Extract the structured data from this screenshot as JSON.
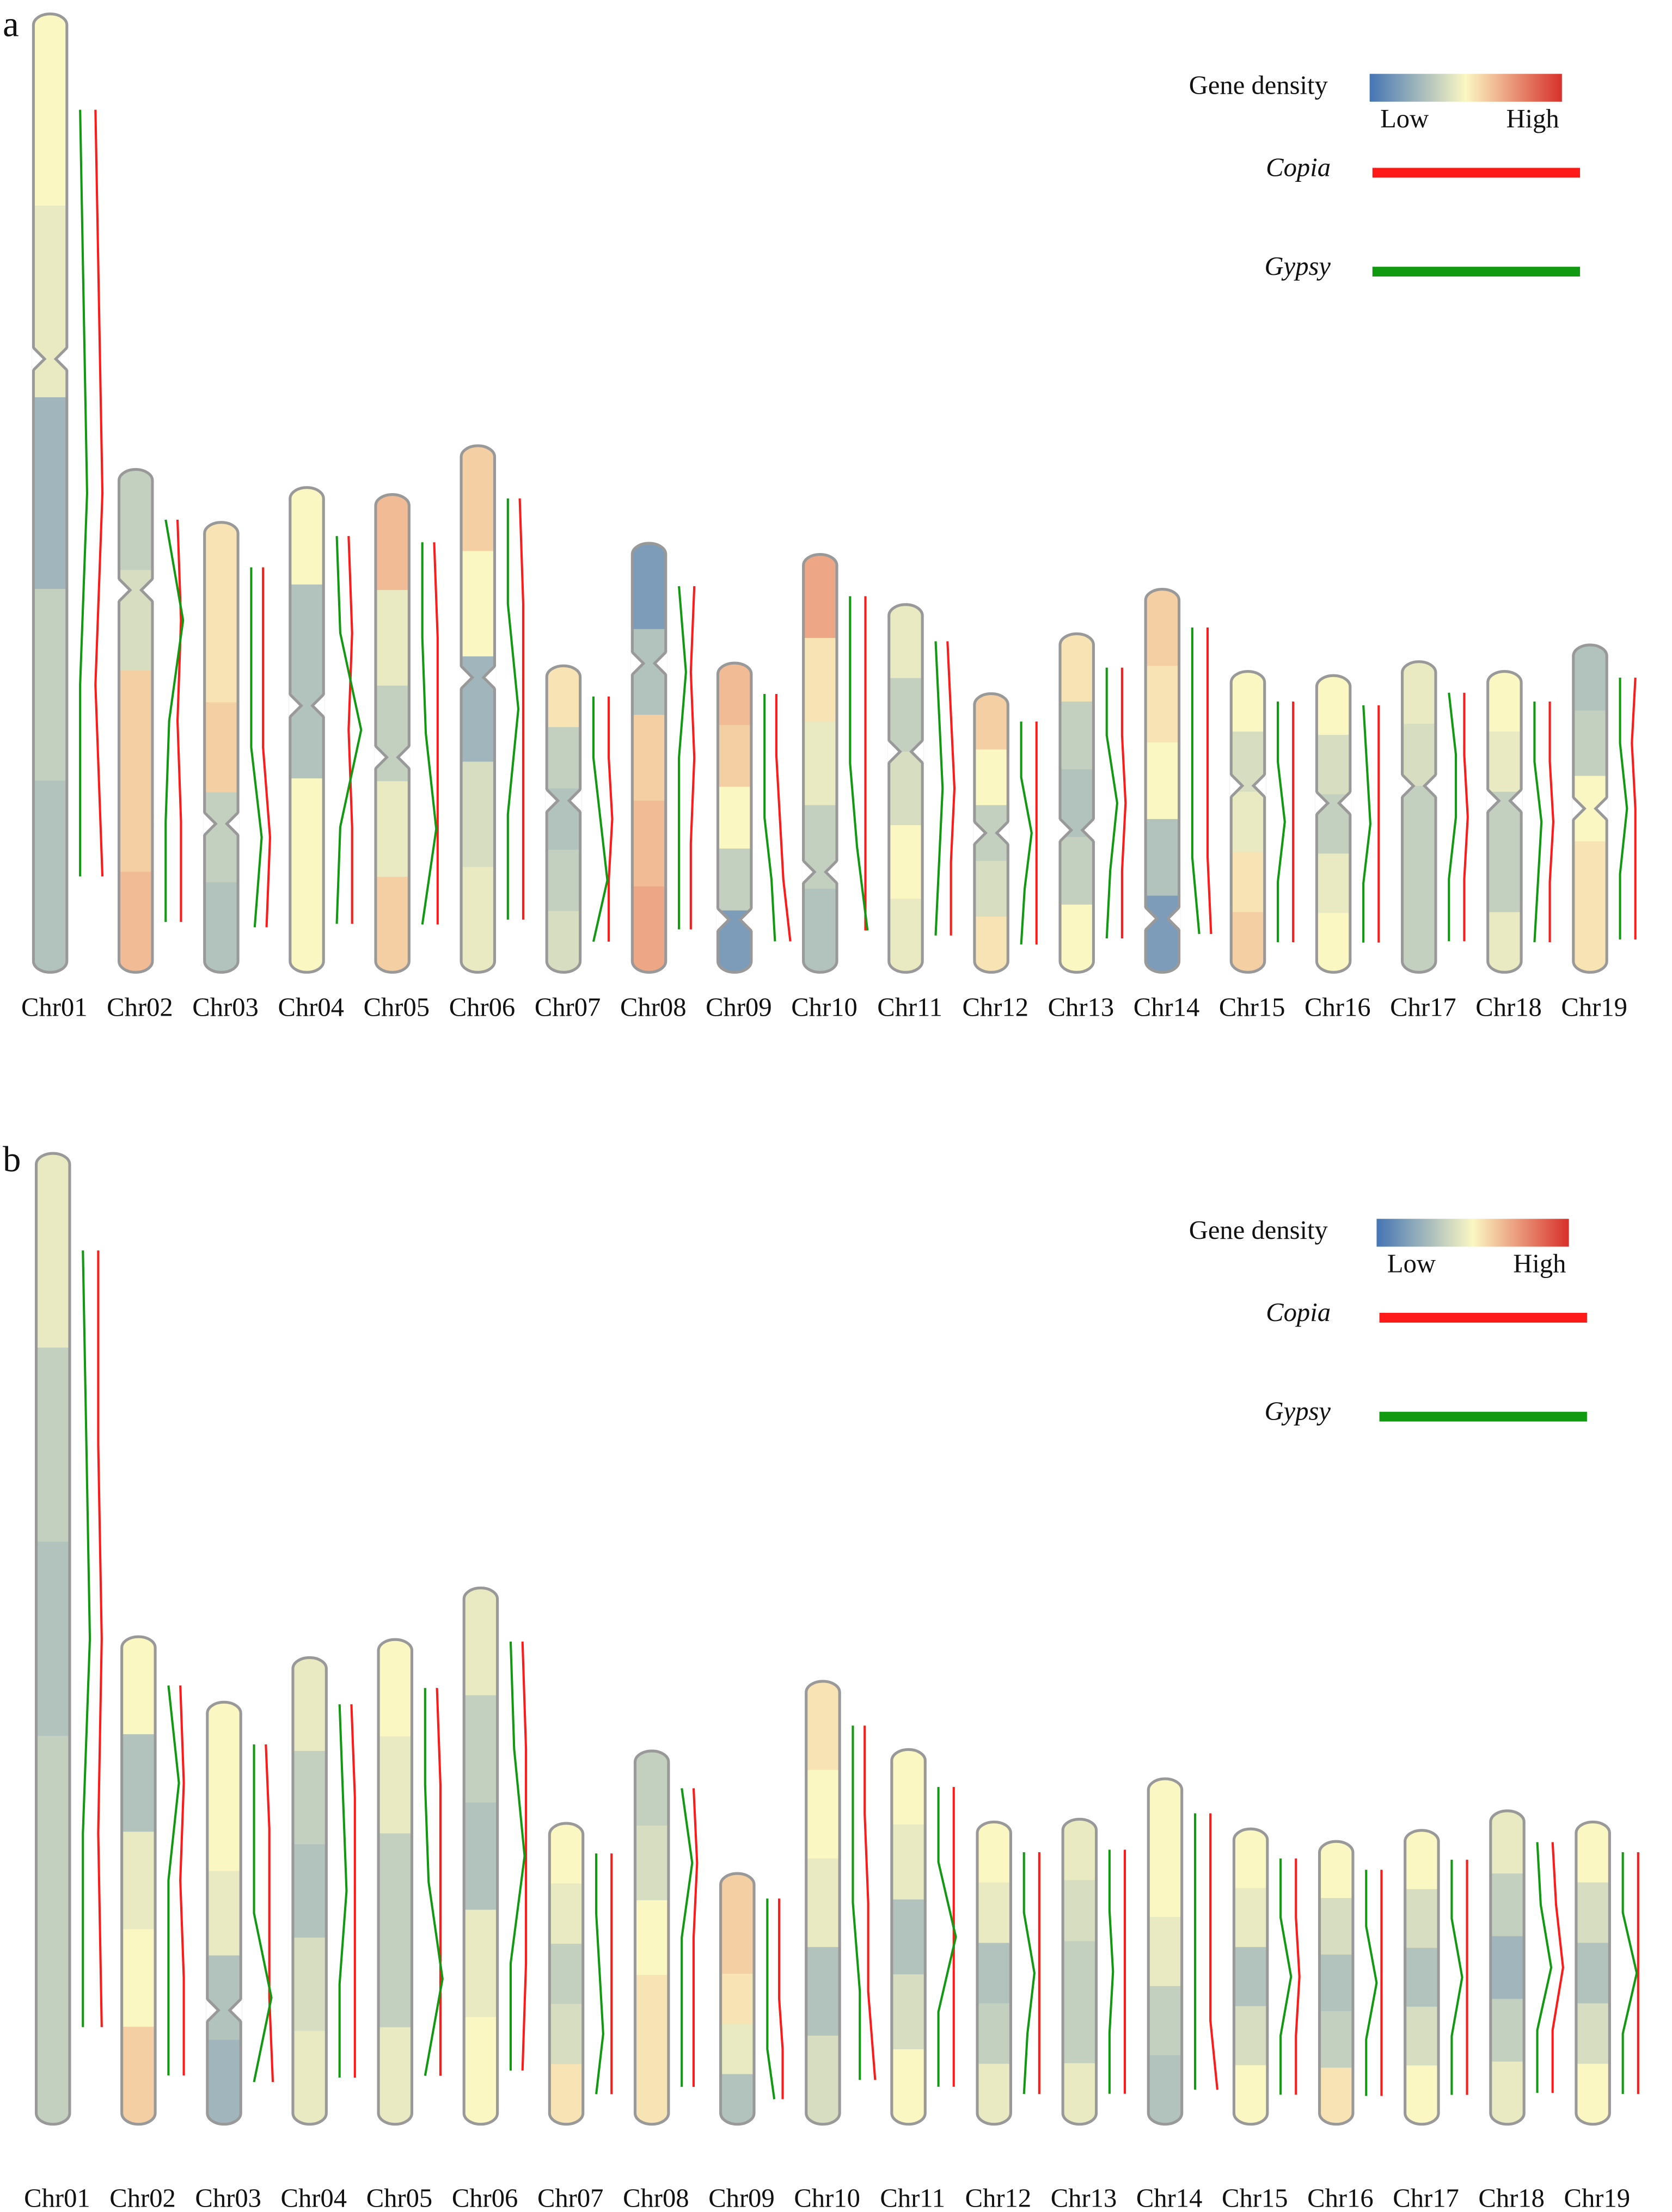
{
  "chart_data": [
    {
      "type": "ideogram",
      "label": "a",
      "legend_title": "Gene density",
      "legend_low": "Low",
      "legend_high": "High",
      "colormap": [
        "#4575b4",
        "#fbf7c3",
        "#d7302a"
      ],
      "categories": [
        "Chr01",
        "Chr02",
        "Chr03",
        "Chr04",
        "Chr05",
        "Chr06",
        "Chr07",
        "Chr08",
        "Chr09",
        "Chr10",
        "Chr11",
        "Chr12",
        "Chr13",
        "Chr14",
        "Chr15",
        "Chr16",
        "Chr17",
        "Chr18",
        "Chr19"
      ],
      "lengths": [
        688,
        361,
        323,
        348,
        343,
        378,
        220,
        308,
        222,
        300,
        264,
        200,
        243,
        275,
        216,
        213,
        223,
        216,
        235
      ],
      "centromeres": [
        0.36,
        0.24,
        0.67,
        0.45,
        0.55,
        0.44,
        0.44,
        0.28,
        0.83,
        0.76,
        0.4,
        0.5,
        0.58,
        0.86,
        0.38,
        0.43,
        0.4,
        0.43,
        0.5
      ],
      "density": [
        [
          0.5,
          0.45,
          0.25,
          0.35,
          0.3
        ],
        [
          0.35,
          0.4,
          0.6,
          0.6,
          0.65
        ],
        [
          0.55,
          0.55,
          0.6,
          0.35,
          0.3
        ],
        [
          0.5,
          0.3,
          0.3,
          0.5,
          0.5
        ],
        [
          0.65,
          0.45,
          0.35,
          0.45,
          0.6
        ],
        [
          0.6,
          0.5,
          0.25,
          0.4,
          0.45
        ],
        [
          0.55,
          0.35,
          0.3,
          0.35,
          0.4
        ],
        [
          0.15,
          0.3,
          0.6,
          0.65,
          0.7
        ],
        [
          0.65,
          0.6,
          0.5,
          0.35,
          0.15
        ],
        [
          0.7,
          0.55,
          0.45,
          0.35,
          0.3
        ],
        [
          0.45,
          0.35,
          0.4,
          0.5,
          0.45
        ],
        [
          0.6,
          0.5,
          0.35,
          0.4,
          0.55
        ],
        [
          0.55,
          0.35,
          0.3,
          0.35,
          0.5
        ],
        [
          0.6,
          0.55,
          0.5,
          0.3,
          0.15
        ],
        [
          0.5,
          0.4,
          0.45,
          0.55,
          0.6
        ],
        [
          0.5,
          0.4,
          0.35,
          0.45,
          0.5
        ],
        [
          0.45,
          0.4,
          0.35,
          0.35,
          0.35
        ],
        [
          0.5,
          0.45,
          0.35,
          0.35,
          0.45
        ],
        [
          0.3,
          0.35,
          0.5,
          0.55,
          0.55
        ]
      ],
      "series": [
        {
          "name": "Copia",
          "color": "#ff1a1a",
          "values": [
            [
              0.3,
              0.4,
              0.5,
              0.3,
              0.5
            ],
            [
              0.2,
              0.3,
              0.2,
              0.3,
              0.3
            ],
            [
              0.2,
              0.2,
              0.2,
              0.4,
              0.3
            ],
            [
              0.2,
              0.3,
              0.2,
              0.3,
              0.3
            ],
            [
              0.2,
              0.3,
              0.3,
              0.3,
              0.3
            ],
            [
              0.2,
              0.3,
              0.3,
              0.3,
              0.3
            ],
            [
              0.3,
              0.3,
              0.4,
              0.3,
              0.3
            ],
            [
              0.3,
              0.2,
              0.3,
              0.2,
              0.2
            ],
            [
              0.2,
              0.2,
              0.3,
              0.4,
              0.6
            ],
            [
              0.3,
              0.3,
              0.3,
              0.3,
              0.3
            ],
            [
              0.2,
              0.3,
              0.4,
              0.3,
              0.3
            ],
            [
              0.3,
              0.3,
              0.3,
              0.3,
              0.3
            ],
            [
              0.3,
              0.3,
              0.4,
              0.3,
              0.3
            ],
            [
              0.3,
              0.3,
              0.3,
              0.3,
              0.4
            ],
            [
              0.3,
              0.3,
              0.3,
              0.3,
              0.3
            ],
            [
              0.3,
              0.3,
              0.3,
              0.3,
              0.3
            ],
            [
              0.3,
              0.3,
              0.4,
              0.3,
              0.3
            ],
            [
              0.3,
              0.3,
              0.4,
              0.3,
              0.3
            ],
            [
              0.3,
              0.2,
              0.3,
              0.3,
              0.3
            ]
          ]
        },
        {
          "name": "Gypsy",
          "color": "#119a11",
          "values": [
            [
              0.1,
              0.2,
              0.3,
              0.1,
              0.1
            ],
            [
              0.1,
              0.6,
              0.2,
              0.1,
              0.1
            ],
            [
              0.1,
              0.1,
              0.1,
              0.4,
              0.2
            ],
            [
              0.1,
              0.2,
              0.8,
              0.2,
              0.1
            ],
            [
              0.1,
              0.1,
              0.2,
              0.5,
              0.1
            ],
            [
              0.1,
              0.1,
              0.4,
              0.1,
              0.1
            ],
            [
              0.1,
              0.1,
              0.3,
              0.5,
              0.1
            ],
            [
              0.1,
              0.3,
              0.1,
              0.1,
              0.1
            ],
            [
              0.1,
              0.1,
              0.1,
              0.3,
              0.4
            ],
            [
              0.1,
              0.1,
              0.1,
              0.3,
              0.6
            ],
            [
              0.1,
              0.2,
              0.3,
              0.2,
              0.1
            ],
            [
              0.1,
              0.1,
              0.4,
              0.2,
              0.1
            ],
            [
              0.1,
              0.1,
              0.4,
              0.2,
              0.1
            ],
            [
              0.1,
              0.1,
              0.1,
              0.1,
              0.3
            ],
            [
              0.1,
              0.1,
              0.3,
              0.1,
              0.1
            ],
            [
              0.1,
              0.2,
              0.3,
              0.1,
              0.1
            ],
            [
              0.1,
              0.3,
              0.3,
              0.1,
              0.1
            ],
            [
              0.1,
              0.1,
              0.3,
              0.2,
              0.1
            ],
            [
              0.1,
              0.1,
              0.3,
              0.1,
              0.1
            ]
          ]
        }
      ]
    },
    {
      "type": "ideogram",
      "label": "b",
      "legend_title": "Gene density",
      "legend_low": "Low",
      "legend_high": "High",
      "colormap": [
        "#4575b4",
        "#fbf7c3",
        "#d7302a"
      ],
      "categories": [
        "Chr01",
        "Chr02",
        "Chr03",
        "Chr04",
        "Chr05",
        "Chr06",
        "Chr07",
        "Chr08",
        "Chr09",
        "Chr10",
        "Chr11",
        "Chr12",
        "Chr13",
        "Chr14",
        "Chr15",
        "Chr16",
        "Chr17",
        "Chr18",
        "Chr19"
      ],
      "lengths": [
        697,
        350,
        303,
        335,
        348,
        385,
        216,
        268,
        180,
        318,
        269,
        217,
        219,
        248,
        212,
        203,
        211,
        225,
        217
      ],
      "centromeres": [
        null,
        null,
        0.73,
        null,
        null,
        null,
        null,
        null,
        null,
        null,
        null,
        null,
        null,
        null,
        null,
        null,
        null,
        null,
        null
      ],
      "density": [
        [
          0.45,
          0.35,
          0.3,
          0.35,
          0.35
        ],
        [
          0.5,
          0.3,
          0.45,
          0.5,
          0.6
        ],
        [
          0.5,
          0.5,
          0.45,
          0.3,
          0.25
        ],
        [
          0.45,
          0.35,
          0.3,
          0.4,
          0.45
        ],
        [
          0.5,
          0.45,
          0.35,
          0.35,
          0.45
        ],
        [
          0.45,
          0.35,
          0.3,
          0.45,
          0.5
        ],
        [
          0.5,
          0.45,
          0.35,
          0.4,
          0.55
        ],
        [
          0.35,
          0.4,
          0.5,
          0.55,
          0.55
        ],
        [
          0.6,
          0.6,
          0.55,
          0.45,
          0.3
        ],
        [
          0.55,
          0.5,
          0.45,
          0.3,
          0.4
        ],
        [
          0.5,
          0.45,
          0.3,
          0.4,
          0.5
        ],
        [
          0.5,
          0.45,
          0.3,
          0.35,
          0.45
        ],
        [
          0.45,
          0.4,
          0.35,
          0.35,
          0.45
        ],
        [
          0.5,
          0.5,
          0.45,
          0.35,
          0.3
        ],
        [
          0.5,
          0.45,
          0.3,
          0.4,
          0.5
        ],
        [
          0.5,
          0.4,
          0.3,
          0.35,
          0.55
        ],
        [
          0.5,
          0.4,
          0.3,
          0.4,
          0.5
        ],
        [
          0.45,
          0.35,
          0.25,
          0.35,
          0.45
        ],
        [
          0.5,
          0.4,
          0.3,
          0.4,
          0.5
        ]
      ],
      "series": [
        {
          "name": "Copia",
          "color": "#ff1a1a",
          "values": [
            [
              0.3,
              0.3,
              0.4,
              0.3,
              0.4
            ],
            [
              0.2,
              0.3,
              0.2,
              0.3,
              0.3
            ],
            [
              0.2,
              0.3,
              0.3,
              0.3,
              0.4
            ],
            [
              0.2,
              0.3,
              0.3,
              0.3,
              0.3
            ],
            [
              0.2,
              0.3,
              0.3,
              0.3,
              0.3
            ],
            [
              0.2,
              0.3,
              0.3,
              0.3,
              0.2
            ],
            [
              0.3,
              0.3,
              0.3,
              0.3,
              0.3
            ],
            [
              0.2,
              0.3,
              0.2,
              0.2,
              0.2
            ],
            [
              0.2,
              0.2,
              0.2,
              0.3,
              0.3
            ],
            [
              0.2,
              0.2,
              0.3,
              0.3,
              0.5
            ],
            [
              0.3,
              0.3,
              0.3,
              0.3,
              0.3
            ],
            [
              0.3,
              0.3,
              0.3,
              0.3,
              0.3
            ],
            [
              0.3,
              0.3,
              0.3,
              0.3,
              0.3
            ],
            [
              0.3,
              0.3,
              0.3,
              0.3,
              0.5
            ],
            [
              0.3,
              0.3,
              0.4,
              0.3,
              0.3
            ],
            [
              0.3,
              0.3,
              0.3,
              0.3,
              0.3
            ],
            [
              0.3,
              0.3,
              0.3,
              0.3,
              0.3
            ],
            [
              0.3,
              0.4,
              0.6,
              0.3,
              0.3
            ],
            [
              0.3,
              0.3,
              0.3,
              0.3,
              0.3
            ]
          ]
        },
        {
          "name": "Gypsy",
          "color": "#119a11",
          "values": [
            [
              0.1,
              0.2,
              0.3,
              0.1,
              0.1
            ],
            [
              0.1,
              0.4,
              0.1,
              0.1,
              0.1
            ],
            [
              0.1,
              0.1,
              0.1,
              0.6,
              0.1
            ],
            [
              0.1,
              0.2,
              0.3,
              0.1,
              0.1
            ],
            [
              0.1,
              0.1,
              0.2,
              0.6,
              0.1
            ],
            [
              0.1,
              0.2,
              0.5,
              0.1,
              0.1
            ],
            [
              0.1,
              0.1,
              0.2,
              0.3,
              0.1
            ],
            [
              0.1,
              0.4,
              0.1,
              0.1,
              0.1
            ],
            [
              0.1,
              0.1,
              0.1,
              0.1,
              0.3
            ],
            [
              0.1,
              0.1,
              0.1,
              0.3,
              0.3
            ],
            [
              0.1,
              0.1,
              0.6,
              0.1,
              0.1
            ],
            [
              0.1,
              0.1,
              0.4,
              0.2,
              0.1
            ],
            [
              0.1,
              0.1,
              0.2,
              0.1,
              0.1
            ],
            [
              0.1,
              0.1,
              0.1,
              0.1,
              0.1
            ],
            [
              0.1,
              0.1,
              0.4,
              0.1,
              0.1
            ],
            [
              0.1,
              0.1,
              0.4,
              0.1,
              0.1
            ],
            [
              0.1,
              0.1,
              0.4,
              0.1,
              0.1
            ],
            [
              0.1,
              0.2,
              0.5,
              0.1,
              0.1
            ],
            [
              0.1,
              0.1,
              0.5,
              0.1,
              0.1
            ]
          ]
        }
      ]
    }
  ]
}
